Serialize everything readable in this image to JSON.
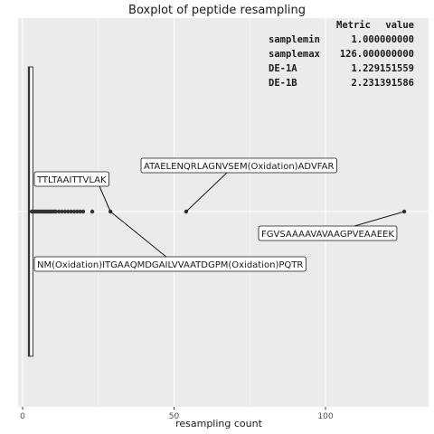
{
  "chart_data": {
    "type": "boxplot",
    "title": "Boxplot of peptide resampling",
    "xlabel": "resampling count",
    "ylabel": "",
    "xlim": [
      -3,
      128
    ],
    "xticks": [
      0,
      50,
      100
    ],
    "grid": true,
    "box": {
      "min": 1,
      "q1": 1,
      "median": 1,
      "q3": 2,
      "max": 2
    },
    "outliers": [
      3,
      3.5,
      4,
      4.5,
      5,
      5.5,
      6,
      6.5,
      7,
      7.5,
      8,
      8.5,
      9,
      9.5,
      10,
      10.5,
      11,
      12,
      13,
      14,
      15,
      16,
      17,
      18,
      19,
      20,
      23,
      29,
      54,
      126
    ],
    "annotations": [
      {
        "label": "TTLTAAITTVLAK",
        "x": 29
      },
      {
        "label": "ATAELENQRLAGNVSEM(Oxidation)ADVFAR",
        "x": 54
      },
      {
        "label": "FGVSAAAAVAVAAGPVEAAEEK",
        "x": 126
      },
      {
        "label": "NM(Oxidation)ITGAAQMDGAILVVAATDGPM(Oxidation)PQTR",
        "x": 29
      }
    ],
    "table": {
      "header": [
        "Metric",
        "value"
      ],
      "rows": [
        [
          "samplemin",
          "1.000000000"
        ],
        [
          "samplemax",
          "126.000000000"
        ],
        [
          "DE-1A",
          "1.229151559"
        ],
        [
          "DE-1B",
          "2.231391586"
        ]
      ]
    }
  }
}
